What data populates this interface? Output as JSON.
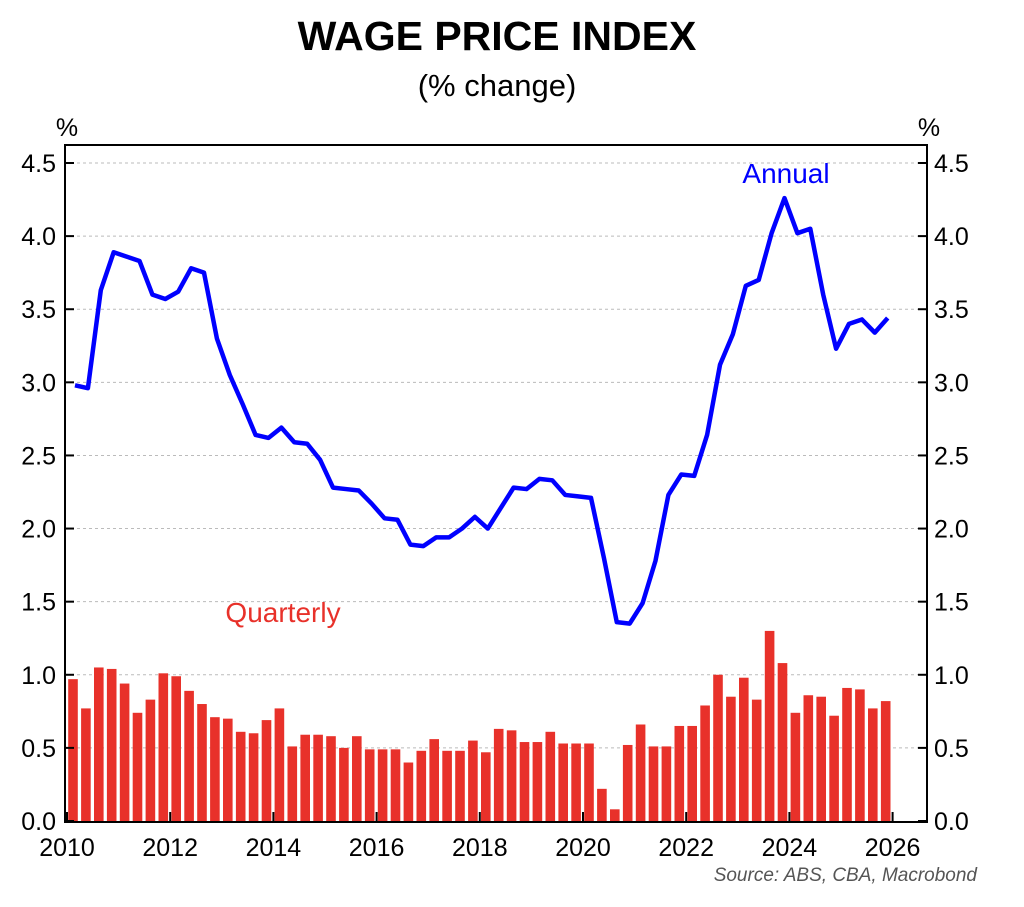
{
  "chart_data": {
    "type": "bar+line",
    "title": "WAGE PRICE INDEX",
    "subtitle": "(% change)",
    "ylabel_left": "%",
    "ylabel_right": "%",
    "ylim": [
      0,
      4.5
    ],
    "yticks": [
      "0.0",
      "0.5",
      "1.0",
      "1.5",
      "2.0",
      "2.5",
      "3.0",
      "3.5",
      "4.0",
      "4.5"
    ],
    "xlim": [
      2010,
      2026.6
    ],
    "xticks": [
      "2010",
      "2012",
      "2014",
      "2016",
      "2018",
      "2020",
      "2022",
      "2024",
      "2026"
    ],
    "grid": true,
    "x_start": "2010 Q1",
    "frequency": "quarterly",
    "series": [
      {
        "name": "Quarterly",
        "type": "bar",
        "color": "#e8312a",
        "values": [
          0.97,
          0.77,
          1.05,
          1.04,
          0.94,
          0.74,
          0.83,
          1.01,
          0.99,
          0.89,
          0.8,
          0.71,
          0.7,
          0.61,
          0.6,
          0.69,
          0.77,
          0.51,
          0.59,
          0.59,
          0.58,
          0.5,
          0.58,
          0.49,
          0.49,
          0.49,
          0.4,
          0.48,
          0.56,
          0.48,
          0.48,
          0.55,
          0.47,
          0.63,
          0.62,
          0.54,
          0.54,
          0.61,
          0.53,
          0.53,
          0.53,
          0.22,
          0.08,
          0.52,
          0.66,
          0.51,
          0.51,
          0.65,
          0.65,
          0.79,
          1.0,
          0.85,
          0.98,
          0.83,
          1.3,
          1.08,
          0.74,
          0.86,
          0.85,
          0.72,
          0.91,
          0.9,
          0.77,
          0.82
        ]
      },
      {
        "name": "Annual",
        "type": "line",
        "color": "#0000ff",
        "values": [
          2.98,
          2.96,
          3.63,
          3.89,
          3.86,
          3.83,
          3.6,
          3.57,
          3.62,
          3.78,
          3.75,
          3.3,
          3.05,
          2.85,
          2.64,
          2.62,
          2.69,
          2.59,
          2.58,
          2.47,
          2.28,
          2.27,
          2.26,
          2.17,
          2.07,
          2.06,
          1.89,
          1.88,
          1.94,
          1.94,
          2.0,
          2.08,
          2.0,
          2.14,
          2.28,
          2.27,
          2.34,
          2.33,
          2.23,
          2.22,
          2.21,
          1.8,
          1.36,
          1.35,
          1.49,
          1.78,
          2.23,
          2.37,
          2.36,
          2.64,
          3.12,
          3.33,
          3.66,
          3.7,
          4.02,
          4.26,
          4.02,
          4.05,
          3.6,
          3.23,
          3.4,
          3.43,
          3.34,
          3.44
        ]
      }
    ],
    "annotations": {
      "annual": "Annual",
      "quarterly": "Quarterly"
    },
    "source": "Source: ABS, CBA, Macrobond"
  }
}
